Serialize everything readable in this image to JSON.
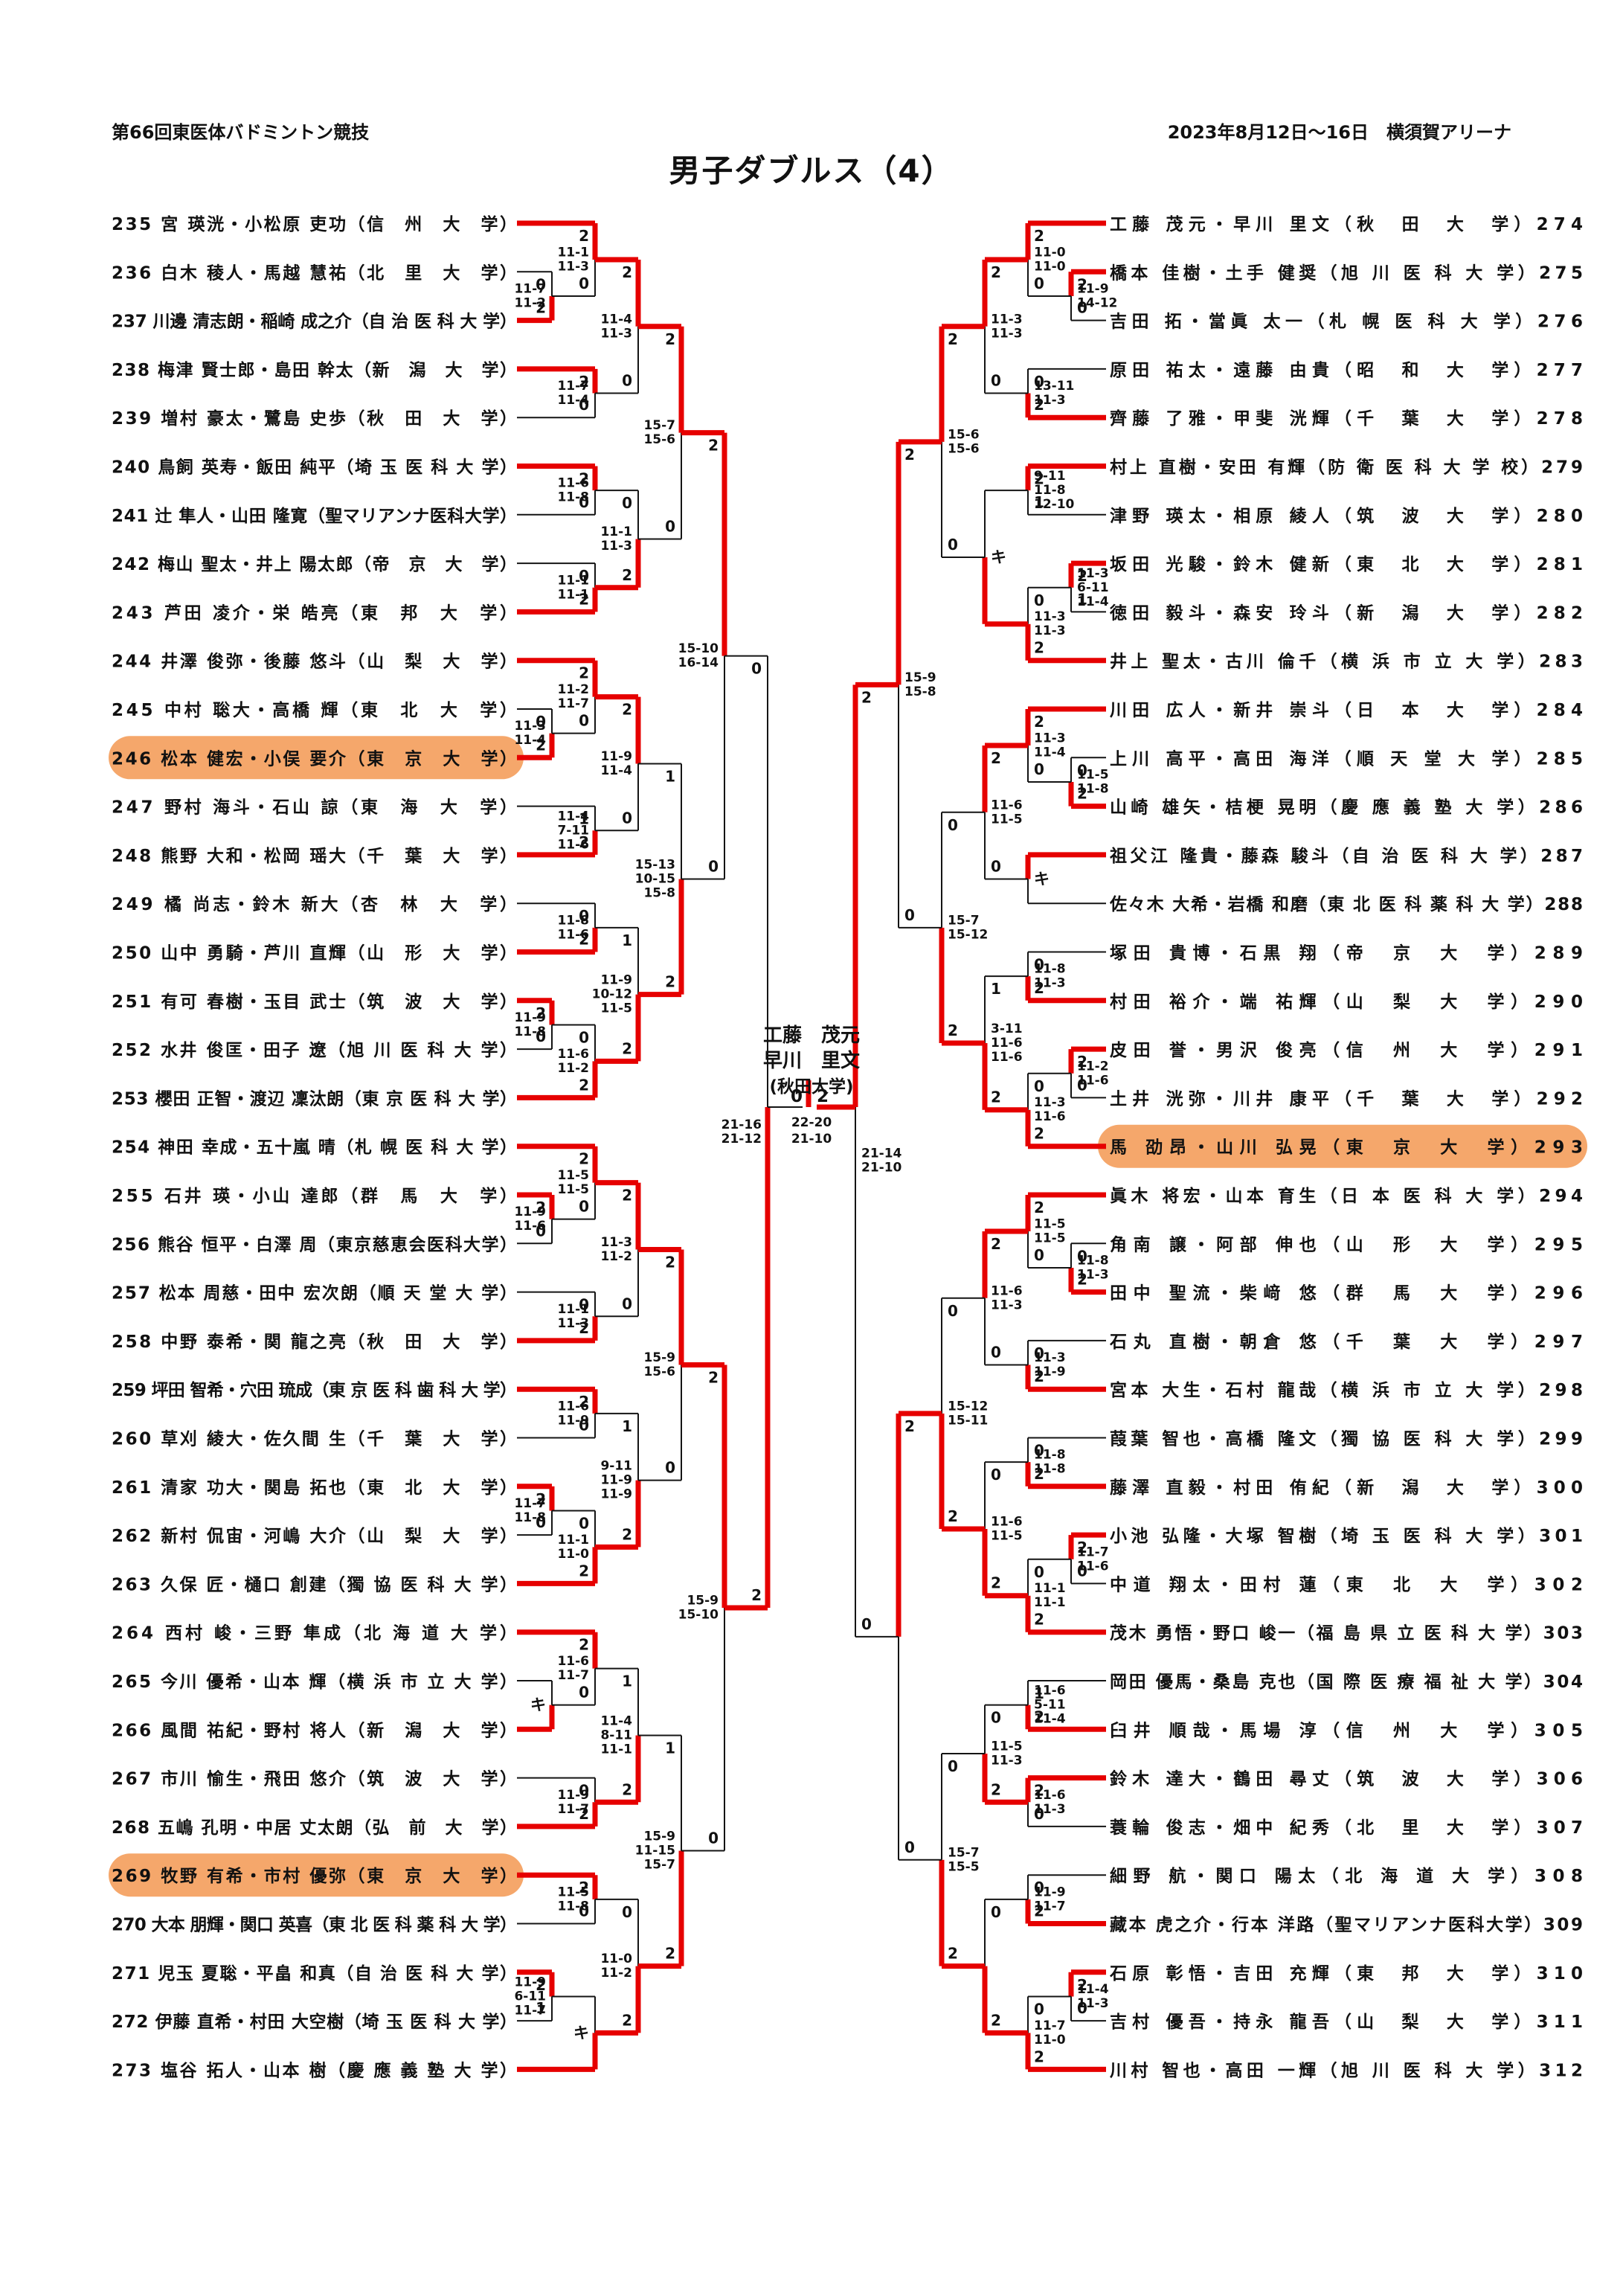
{
  "header": {
    "left": "第66回東医体バドミントン競技",
    "right": "2023年8月12日～16日　横須賀アリーナ",
    "title": "男子ダブルス（4）"
  },
  "colors": {
    "red": "#e60000",
    "black": "#141414",
    "highlight": "#f5a76b"
  },
  "final": {
    "score_left": "0",
    "score_right": "2",
    "games": [
      "22-20",
      "21-10"
    ],
    "champion": {
      "names": [
        "工藤　茂元",
        "早川　里文"
      ],
      "uni": "(秋田大学)"
    }
  },
  "left_entries": [
    [
      235,
      "宮 瑛洸・小松原 吏功",
      "信州大学",
      0
    ],
    [
      236,
      "白木 稜人・馬越 慧祐",
      "北里大学",
      0
    ],
    [
      237,
      "川邊 清志朗・稲崎 成之介",
      "自治医科大学",
      0
    ],
    [
      238,
      "梅津 賢士郎・島田 幹太",
      "新潟大学",
      0
    ],
    [
      239,
      "増村 豪太・鷺島 史歩",
      "秋田大学",
      0
    ],
    [
      240,
      "鳥飼 英寿・飯田 純平",
      "埼玉医科大学",
      0
    ],
    [
      241,
      "辻 隼人・山田 隆寛",
      "聖マリアンナ医科大学",
      0
    ],
    [
      242,
      "梅山 聖太・井上 陽太郎",
      "帝京大学",
      0
    ],
    [
      243,
      "芦田 凌介・栄 皓亮",
      "東邦大学",
      0
    ],
    [
      244,
      "井澤 俊弥・後藤 悠斗",
      "山梨大学",
      0
    ],
    [
      245,
      "中村 聡大・高橋 輝",
      "東北大学",
      0
    ],
    [
      246,
      "松本 健宏・小俣 要介",
      "東京大学",
      1
    ],
    [
      247,
      "野村 海斗・石山 諒",
      "東海大学",
      0
    ],
    [
      248,
      "熊野 大和・松岡 瑶大",
      "千葉大学",
      0
    ],
    [
      249,
      "橘 尚志・鈴木 新大",
      "杏林大学",
      0
    ],
    [
      250,
      "山中 勇騎・芦川 直輝",
      "山形大学",
      0
    ],
    [
      251,
      "有可 春樹・玉目 武士",
      "筑波大学",
      0
    ],
    [
      252,
      "水井 俊匡・田子 遼",
      "旭川医科大学",
      0
    ],
    [
      253,
      "櫻田 正智・渡辺 凜汰朗",
      "東京医科大学",
      0
    ],
    [
      254,
      "神田 幸成・五十嵐 晴",
      "札幌医科大学",
      0
    ],
    [
      255,
      "石井 瑛・小山 達郎",
      "群馬大学",
      0
    ],
    [
      256,
      "熊谷 恒平・白澤 周",
      "東京慈恵会医科大学",
      0
    ],
    [
      257,
      "松本 周慈・田中 宏次朗",
      "順天堂大学",
      0
    ],
    [
      258,
      "中野 泰希・関 龍之亮",
      "秋田大学",
      0
    ],
    [
      259,
      "坪田 智希・穴田 琉成",
      "東京医科歯科大学",
      0
    ],
    [
      260,
      "草刈 綾大・佐久間 生",
      "千葉大学",
      0
    ],
    [
      261,
      "清家 功大・関島 拓也",
      "東北大学",
      0
    ],
    [
      262,
      "新村 侃宙・河嶋 大介",
      "山梨大学",
      0
    ],
    [
      263,
      "久保 匠・樋口 創建",
      "獨協医科大学",
      0
    ],
    [
      264,
      "西村 峻・三野 隼成",
      "北海道大学",
      0
    ],
    [
      265,
      "今川 優希・山本 輝",
      "横浜市立大学",
      0
    ],
    [
      266,
      "風間 祐紀・野村 将人",
      "新潟大学",
      0
    ],
    [
      267,
      "市川 愉生・飛田 悠介",
      "筑波大学",
      0
    ],
    [
      268,
      "五嶋 孔明・中居 丈太朗",
      "弘前大学",
      0
    ],
    [
      269,
      "牧野 有希・市村 優弥",
      "東京大学",
      1
    ],
    [
      270,
      "大本 朋輝・関口 英喜",
      "東北医科薬科大学",
      0
    ],
    [
      271,
      "児玉 夏聡・平畠 和真",
      "自治医科大学",
      0
    ],
    [
      272,
      "伊藤 直希・村田 大空樹",
      "埼玉医科大学",
      0
    ],
    [
      273,
      "塩谷 拓人・山本 樹",
      "慶應義塾大学",
      0
    ]
  ],
  "right_entries": [
    [
      274,
      "工藤 茂元・早川 里文",
      "秋田大学",
      0
    ],
    [
      275,
      "橋本 佳樹・土手 健奨",
      "旭川医科大学",
      0
    ],
    [
      276,
      "吉田 拓・當眞 太一",
      "札幌医科大学",
      0
    ],
    [
      277,
      "原田 祐太・遠藤 由貴",
      "昭和大学",
      0
    ],
    [
      278,
      "齊藤 了雅・甲斐 洸輝",
      "千葉大学",
      0
    ],
    [
      279,
      "村上 直樹・安田 有輝",
      "防衛医科大学校",
      0
    ],
    [
      280,
      "津野 瑛太・相原 綾人",
      "筑波大学",
      0
    ],
    [
      281,
      "坂田 光駿・鈴木 健新",
      "東北大学",
      0
    ],
    [
      282,
      "徳田 毅斗・森安 玲斗",
      "新潟大学",
      0
    ],
    [
      283,
      "井上 聖太・古川 倫千",
      "横浜市立大学",
      0
    ],
    [
      284,
      "川田 広人・新井 崇斗",
      "日本大学",
      0
    ],
    [
      285,
      "上川 高平・高田 海洋",
      "順天堂大学",
      0
    ],
    [
      286,
      "山崎 雄矢・桔梗 晃明",
      "慶應義塾大学",
      0
    ],
    [
      287,
      "祖父江 隆貴・藤森 駿斗",
      "自治医科大学",
      0
    ],
    [
      288,
      "佐々木 大希・岩橋 和磨",
      "東北医科薬科大学",
      0
    ],
    [
      289,
      "塚田 貴博・石黒 翔",
      "帝京大学",
      0
    ],
    [
      290,
      "村田 裕介・端 祐輝",
      "山梨大学",
      0
    ],
    [
      291,
      "皮田 誉・男沢 俊亮",
      "信州大学",
      0
    ],
    [
      292,
      "土井 洸弥・川井 康平",
      "千葉大学",
      0
    ],
    [
      293,
      "馬 劭昂・山川 弘晃",
      "東京大学",
      1
    ],
    [
      294,
      "眞木 将宏・山本 育生",
      "日本医科大学",
      0
    ],
    [
      295,
      "角南 譲・阿部 伸也",
      "山形大学",
      0
    ],
    [
      296,
      "田中 聖流・柴﨑 悠",
      "群馬大学",
      0
    ],
    [
      297,
      "石丸 直樹・朝倉 悠",
      "千葉大学",
      0
    ],
    [
      298,
      "宮本 大生・石村 龍哉",
      "横浜市立大学",
      0
    ],
    [
      299,
      "葭葉 智也・高橋 隆文",
      "獨協医科大学",
      0
    ],
    [
      300,
      "藤澤 直毅・村田 侑紀",
      "新潟大学",
      0
    ],
    [
      301,
      "小池 弘隆・大塚 智樹",
      "埼玉医科大学",
      0
    ],
    [
      302,
      "中道 翔太・田村 蓮",
      "東北大学",
      0
    ],
    [
      303,
      "茂木 勇悟・野口 峻一",
      "福島県立医科大学",
      0
    ],
    [
      304,
      "岡田 優馬・桑島 克也",
      "国際医療福祉大学",
      0
    ],
    [
      305,
      "臼井 順哉・馬場 淳",
      "信州大学",
      0
    ],
    [
      306,
      "鈴木 達大・鶴田 尋丈",
      "筑波大学",
      0
    ],
    [
      307,
      "蓑輪 俊志・畑中 紀秀",
      "北里大学",
      0
    ],
    [
      308,
      "細野 航・関口 陽太",
      "北海道大学",
      0
    ],
    [
      309,
      "藏本 虎之介・行本 洋路",
      "聖マリアンナ医科大学",
      0
    ],
    [
      310,
      "石原 彰悟・吉田 充輝",
      "東邦大学",
      0
    ],
    [
      311,
      "吉村 優吾・持永 龍吾",
      "山梨大学",
      0
    ],
    [
      312,
      "川村 智也・高田 一輝",
      "旭川医科大学",
      0
    ]
  ],
  "left_matches": [
    [
      1,
      "s236",
      "s237",
      "b",
      [
        "11-7",
        "11-2"
      ],
      "0",
      "2"
    ],
    [
      2,
      "s235",
      "m0",
      "a",
      [
        "11-1",
        "11-3"
      ],
      "2",
      "0"
    ],
    [
      2,
      "s238",
      "s239",
      "a",
      [
        "11-7",
        "11-4"
      ],
      "2",
      "0"
    ],
    [
      3,
      "m1",
      "m2",
      "a",
      [
        "11-4",
        "11-3"
      ],
      "2",
      "0"
    ],
    [
      2,
      "s240",
      "s241",
      "a",
      [
        "11-6",
        "11-8"
      ],
      "2",
      "0"
    ],
    [
      2,
      "s242",
      "s243",
      "b",
      [
        "11-1",
        "11-1"
      ],
      "0",
      "2"
    ],
    [
      3,
      "m4",
      "m5",
      "b",
      [
        "11-1",
        "11-3"
      ],
      "0",
      "2"
    ],
    [
      4,
      "m3",
      "m6",
      "a",
      [
        "15-7",
        "15-6"
      ],
      "2",
      "0"
    ],
    [
      1,
      "s245",
      "s246",
      "b",
      [
        "11-3",
        "11-4"
      ],
      "0",
      "2"
    ],
    [
      2,
      "s244",
      "m8",
      "a",
      [
        "11-2",
        "11-7"
      ],
      "2",
      "0"
    ],
    [
      2,
      "s247",
      "s248",
      "b",
      [
        "11-4",
        "7-11",
        "11-6"
      ],
      "1",
      "2"
    ],
    [
      3,
      "m9",
      "m10",
      "a",
      [
        "11-9",
        "11-4"
      ],
      "2",
      "0"
    ],
    [
      2,
      "s249",
      "s250",
      "b",
      [
        "11-8",
        "11-6"
      ],
      "0",
      "2"
    ],
    [
      1,
      "s251",
      "s252",
      "a",
      [
        "11-9",
        "11-8"
      ],
      "2",
      "0"
    ],
    [
      2,
      "m13",
      "s253",
      "b",
      [
        "11-6",
        "11-2"
      ],
      "0",
      "2"
    ],
    [
      3,
      "m12",
      "m14",
      "b",
      [
        "11-9",
        "10-12",
        "11-5"
      ],
      "1",
      "2"
    ],
    [
      4,
      "m11",
      "m15",
      "b",
      [
        "15-13",
        "10-15",
        "15-8"
      ],
      "1",
      "2"
    ],
    [
      5,
      "m7",
      "m16",
      "a",
      [
        "15-10",
        "16-14"
      ],
      "2",
      "0"
    ],
    [
      1,
      "s255",
      "s256",
      "a",
      [
        "11-9",
        "11-6"
      ],
      "2",
      "0"
    ],
    [
      2,
      "s254",
      "m18",
      "a",
      [
        "11-5",
        "11-5"
      ],
      "2",
      "0"
    ],
    [
      2,
      "s257",
      "s258",
      "b",
      [
        "11-1",
        "11-3"
      ],
      "0",
      "2"
    ],
    [
      3,
      "m19",
      "m20",
      "a",
      [
        "11-3",
        "11-2"
      ],
      "2",
      "0"
    ],
    [
      2,
      "s259",
      "s260",
      "a",
      [
        "11-6",
        "11-9"
      ],
      "2",
      "0"
    ],
    [
      1,
      "s261",
      "s262",
      "a",
      [
        "11-7",
        "11-8"
      ],
      "2",
      "0"
    ],
    [
      2,
      "m23",
      "s263",
      "b",
      [
        "11-1",
        "11-0"
      ],
      "0",
      "2"
    ],
    [
      3,
      "m22",
      "m24",
      "b",
      [
        "9-11",
        "11-9",
        "11-9"
      ],
      "1",
      "2"
    ],
    [
      4,
      "m21",
      "m25",
      "a",
      [
        "15-9",
        "15-6"
      ],
      "2",
      "0"
    ],
    [
      1,
      "s265",
      "s266",
      "b",
      [
        "キ"
      ],
      "",
      ""
    ],
    [
      2,
      "s264",
      "m27",
      "a",
      [
        "11-6",
        "11-7"
      ],
      "2",
      "0"
    ],
    [
      2,
      "s267",
      "s268",
      "b",
      [
        "11-9",
        "11-7"
      ],
      "0",
      "2"
    ],
    [
      3,
      "m28",
      "m29",
      "b",
      [
        "11-4",
        "8-11",
        "11-1"
      ],
      "1",
      "2"
    ],
    [
      2,
      "s269",
      "s270",
      "a",
      [
        "11-5",
        "11-8"
      ],
      "2",
      "0"
    ],
    [
      1,
      "s271",
      "s272",
      "a",
      [
        "11-9",
        "6-11",
        "11-7"
      ],
      "2",
      "1"
    ],
    [
      2,
      "m32",
      "s273",
      "b",
      [
        "キ"
      ],
      "",
      ""
    ],
    [
      3,
      "m31",
      "m33",
      "b",
      [
        "11-0",
        "11-2"
      ],
      "0",
      "2"
    ],
    [
      4,
      "m30",
      "m34",
      "b",
      [
        "15-9",
        "11-15",
        "15-7"
      ],
      "1",
      "2"
    ],
    [
      5,
      "m26",
      "m35",
      "a",
      [
        "15-9",
        "15-10"
      ],
      "2",
      "0"
    ],
    [
      6,
      "m17",
      "m36",
      "b",
      [
        "21-16",
        "21-12"
      ],
      "0",
      "2"
    ]
  ],
  "right_matches": [
    [
      1,
      "s275",
      "s276",
      "a",
      [
        "11-9",
        "14-12"
      ],
      "2",
      "0"
    ],
    [
      2,
      "s274",
      "m0",
      "a",
      [
        "11-0",
        "11-0"
      ],
      "2",
      "0"
    ],
    [
      2,
      "s277",
      "s278",
      "b",
      [
        "13-11",
        "11-3"
      ],
      "0",
      "2"
    ],
    [
      3,
      "m1",
      "m2",
      "a",
      [
        "11-3",
        "11-3"
      ],
      "2",
      "0"
    ],
    [
      2,
      "s279",
      "s280",
      "a",
      [
        "9-11",
        "11-8",
        "12-10"
      ],
      "2",
      "1"
    ],
    [
      1,
      "s281",
      "s282",
      "a",
      [
        "11-3",
        "6-11",
        "11-4"
      ],
      "2",
      "1"
    ],
    [
      2,
      "m5",
      "s283",
      "b",
      [
        "11-3",
        "11-3"
      ],
      "0",
      "2"
    ],
    [
      3,
      "m4",
      "m6",
      "b",
      [
        "キ"
      ],
      "",
      ""
    ],
    [
      4,
      "m3",
      "m7",
      "a",
      [
        "15-6",
        "15-6"
      ],
      "2",
      "0"
    ],
    [
      1,
      "s285",
      "s286",
      "b",
      [
        "11-5",
        "11-8"
      ],
      "0",
      "2"
    ],
    [
      2,
      "s284",
      "m9",
      "a",
      [
        "11-3",
        "11-4"
      ],
      "2",
      "0"
    ],
    [
      2,
      "s287",
      "s288",
      "a",
      [
        "キ"
      ],
      "",
      ""
    ],
    [
      3,
      "m10",
      "m11",
      "a",
      [
        "11-6",
        "11-5"
      ],
      "2",
      "0"
    ],
    [
      2,
      "s289",
      "s290",
      "b",
      [
        "11-8",
        "11-3"
      ],
      "0",
      "2"
    ],
    [
      1,
      "s291",
      "s292",
      "a",
      [
        "11-2",
        "11-6"
      ],
      "2",
      "0"
    ],
    [
      2,
      "m14",
      "s293",
      "b",
      [
        "11-3",
        "11-6"
      ],
      "0",
      "2"
    ],
    [
      3,
      "m13",
      "m15",
      "b",
      [
        "3-11",
        "11-6",
        "11-6"
      ],
      "1",
      "2"
    ],
    [
      4,
      "m12",
      "m16",
      "b",
      [
        "15-7",
        "15-12"
      ],
      "0",
      "2"
    ],
    [
      5,
      "m8",
      "m17",
      "a",
      [
        "15-9",
        "15-8"
      ],
      "2",
      "0"
    ],
    [
      1,
      "s295",
      "s296",
      "b",
      [
        "11-8",
        "11-3"
      ],
      "0",
      "2"
    ],
    [
      2,
      "s294",
      "m19",
      "a",
      [
        "11-5",
        "11-5"
      ],
      "2",
      "0"
    ],
    [
      2,
      "s297",
      "s298",
      "b",
      [
        "11-3",
        "11-9"
      ],
      "0",
      "2"
    ],
    [
      3,
      "m20",
      "m21",
      "a",
      [
        "11-6",
        "11-3"
      ],
      "2",
      "0"
    ],
    [
      2,
      "s299",
      "s300",
      "b",
      [
        "11-8",
        "11-8"
      ],
      "0",
      "2"
    ],
    [
      1,
      "s301",
      "s302",
      "a",
      [
        "11-7",
        "11-6"
      ],
      "2",
      "0"
    ],
    [
      2,
      "m24",
      "s303",
      "b",
      [
        "11-1",
        "11-1"
      ],
      "0",
      "2"
    ],
    [
      3,
      "m23",
      "m25",
      "b",
      [
        "11-6",
        "11-5"
      ],
      "0",
      "2"
    ],
    [
      4,
      "m22",
      "m26",
      "b",
      [
        "15-12",
        "15-11"
      ],
      "0",
      "2"
    ],
    [
      2,
      "s304",
      "s305",
      "b",
      [
        "11-6",
        "5-11",
        "11-4"
      ],
      "1",
      "2"
    ],
    [
      2,
      "s306",
      "s307",
      "a",
      [
        "11-6",
        "11-3"
      ],
      "2",
      "0"
    ],
    [
      3,
      "m28",
      "m29",
      "b",
      [
        "11-5",
        "11-3"
      ],
      "0",
      "2"
    ],
    [
      2,
      "s308",
      "s309",
      "b",
      [
        "11-9",
        "11-7"
      ],
      "0",
      "2"
    ],
    [
      1,
      "s310",
      "s311",
      "a",
      [
        "11-4",
        "11-3"
      ],
      "2",
      "0"
    ],
    [
      2,
      "m32",
      "s312",
      "b",
      [
        "11-7",
        "11-0"
      ],
      "0",
      "2"
    ],
    [
      3,
      "m31",
      "m33",
      "b",
      [],
      "0",
      "2"
    ],
    [
      4,
      "m30",
      "m34",
      "b",
      [
        "15-7",
        "15-5"
      ],
      "0",
      "2"
    ],
    [
      5,
      "m27",
      "m35",
      "a",
      [],
      "2",
      "0"
    ],
    [
      6,
      "m18",
      "m36",
      "a",
      [
        "21-14",
        "21-10"
      ],
      "2",
      "0"
    ]
  ]
}
